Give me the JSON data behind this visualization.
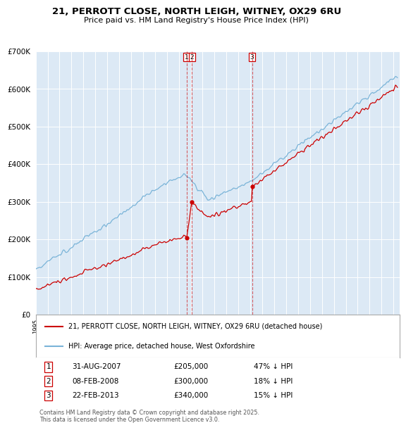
{
  "title": "21, PERROTT CLOSE, NORTH LEIGH, WITNEY, OX29 6RU",
  "subtitle": "Price paid vs. HM Land Registry's House Price Index (HPI)",
  "bg_color": "#dce9f5",
  "hpi_color": "#7ab4d8",
  "price_color": "#cc0000",
  "legend_items": [
    "21, PERROTT CLOSE, NORTH LEIGH, WITNEY, OX29 6RU (detached house)",
    "HPI: Average price, detached house, West Oxfordshire"
  ],
  "transactions": [
    {
      "num": 1,
      "date": "31-AUG-2007",
      "date_float": 2007.664,
      "price": 205000,
      "pct": "47% ↓ HPI"
    },
    {
      "num": 2,
      "date": "08-FEB-2008",
      "date_float": 2008.106,
      "price": 300000,
      "pct": "18% ↓ HPI"
    },
    {
      "num": 3,
      "date": "22-FEB-2013",
      "date_float": 2013.14,
      "price": 340000,
      "pct": "15% ↓ HPI"
    }
  ],
  "footer": "Contains HM Land Registry data © Crown copyright and database right 2025.\nThis data is licensed under the Open Government Licence v3.0.",
  "ylim": [
    0,
    700000
  ],
  "xlim_start": 1995.0,
  "xlim_end": 2025.5,
  "yticks": [
    0,
    100000,
    200000,
    300000,
    400000,
    500000,
    600000,
    700000
  ]
}
